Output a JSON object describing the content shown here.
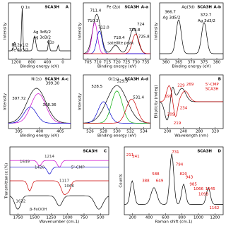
{
  "panels": [
    {
      "label": "A",
      "title": "",
      "sample": "SCA3H",
      "xlabel": "Binding energy (eV)",
      "ylabel": "Intensity",
      "xticks": [
        "1200",
        "800",
        "400",
        "0"
      ],
      "notes": [
        "O 1s",
        "Fe 2p3/2",
        "Fe 2p1/2",
        "Ag 3d5/2",
        "Ag 3d3/2",
        "C1s"
      ]
    },
    {
      "label": "A-a",
      "title": "Fe (2p)",
      "sample": "SCA3H",
      "xlabel": "Binding energy (eV)",
      "ylabel": "Intensity",
      "xticks": [
        "705",
        "710",
        "715",
        "720",
        "725",
        "730",
        "735"
      ],
      "notes": [
        "710.3",
        "711.4",
        "712.0",
        "718.4",
        "satellite peak",
        "724",
        "723.8",
        "725.8"
      ]
    },
    {
      "label": "A-b",
      "title": "Ag(3d)",
      "sample": "SCA3H",
      "xlabel": "Binding energy (eV)",
      "ylabel": "Intensity",
      "xticks": [
        "360",
        "365",
        "370",
        "375",
        "380"
      ],
      "notes": [
        "366.7",
        "Ag 3d5/2",
        "372.7",
        "Ag 3d3/2"
      ]
    },
    {
      "label": "A-c",
      "title": "N(1s)",
      "sample": "SCA3H",
      "xlabel": "Binding energy (eV)",
      "ylabel": "Intensity",
      "xticks": [
        "395",
        "400",
        "405"
      ],
      "notes": [
        "399.30",
        "397.72",
        "398.36"
      ]
    },
    {
      "label": "A-d",
      "title": "O(1s)",
      "sample": "SCA3H",
      "xlabel": "Binding energy (eV)",
      "ylabel": "Intensity",
      "xticks": [
        "526",
        "528",
        "530",
        "532",
        "534"
      ],
      "notes": [
        "528.5",
        "529.9",
        "531.4"
      ]
    },
    {
      "label": "B",
      "title": "",
      "sample": "",
      "xlabel": "Wavelength (nm)",
      "ylabel": "Ellipticity (mdeg)",
      "xticks": [
        "200",
        "240",
        "280",
        "320"
      ],
      "notes": [
        "193",
        "269",
        "229",
        "209",
        "234",
        "219",
        "5'-CMP",
        "SCA3H"
      ]
    },
    {
      "label": "C",
      "title": "",
      "sample": "SCA3H",
      "xlabel": "Wavenumber (cm-1)",
      "ylabel": "Transmittance (%)",
      "xticks": [
        "1750",
        "1500",
        "1250",
        "1000",
        "750",
        "500"
      ],
      "notes": [
        "5'-CMP",
        "β-FeOOH",
        "1632",
        "1066",
        "1117",
        "1214",
        "1649",
        "1420"
      ]
    },
    {
      "label": "D",
      "title": "",
      "sample": "SCA3H",
      "xlabel": "Raman shift (cm-1)",
      "ylabel": "Counts",
      "xticks": [
        "200",
        "400",
        "600",
        "800",
        "1000",
        "1200"
      ],
      "notes": [
        "211",
        "241",
        "388",
        "588",
        "649",
        "731",
        "794",
        "820",
        "943",
        "985",
        "1066",
        "1093",
        "1145",
        "1162"
      ]
    }
  ]
}
